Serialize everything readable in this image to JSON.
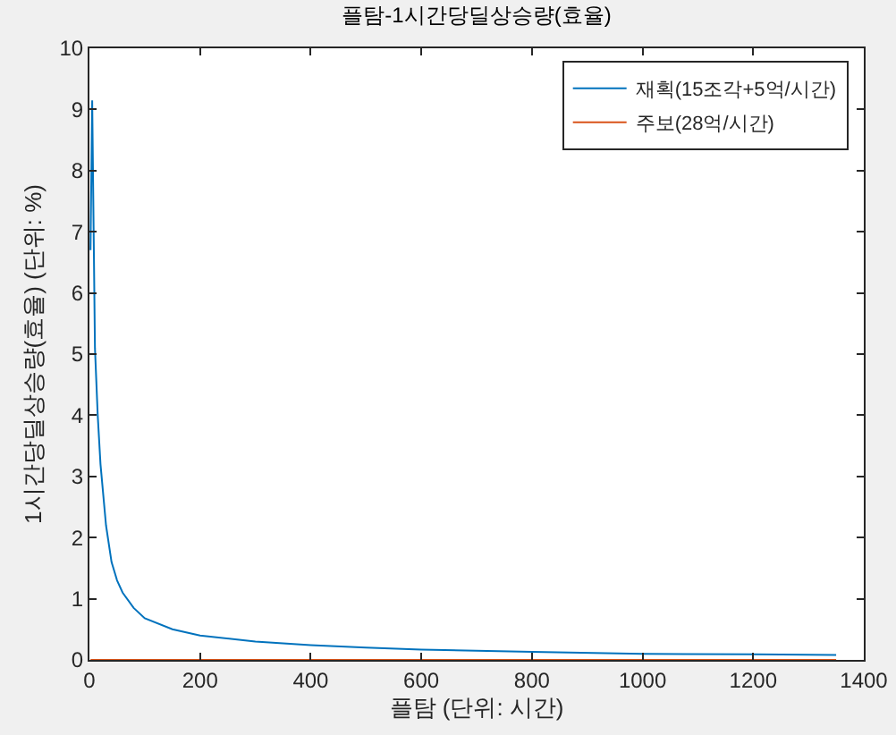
{
  "chart_data": {
    "type": "line",
    "title": "플탐-1시간당딜상승량(효율)",
    "xlabel": "플탐 (단위: 시간)",
    "ylabel": "1시간당딜상승량(효율) (단위: %)",
    "x": [
      2,
      5,
      10,
      15,
      20,
      30,
      40,
      50,
      60,
      80,
      100,
      150,
      200,
      300,
      400,
      500,
      600,
      800,
      1000,
      1200,
      1350
    ],
    "series": [
      {
        "name": "재획(15조각+5억/시간)",
        "color": "#0072bd",
        "values": [
          6.7,
          9.15,
          5.1,
          4.0,
          3.2,
          2.2,
          1.6,
          1.3,
          1.1,
          0.85,
          0.68,
          0.5,
          0.4,
          0.3,
          0.24,
          0.2,
          0.17,
          0.13,
          0.1,
          0.09,
          0.08
        ]
      },
      {
        "name": "주보(28억/시간)",
        "color": "#d95319",
        "values": [
          0,
          0,
          0,
          0,
          0,
          0,
          0,
          0,
          0,
          0,
          0,
          0,
          0,
          0,
          0,
          0,
          0,
          0,
          0,
          0,
          0
        ]
      }
    ],
    "xlim": [
      0,
      1400
    ],
    "xticks": [
      0,
      200,
      400,
      600,
      800,
      1000,
      1200,
      1400
    ],
    "ylim": [
      0,
      10
    ],
    "yticks": [
      0,
      1,
      2,
      3,
      4,
      5,
      6,
      7,
      8,
      9,
      10
    ],
    "grid": false,
    "legend": "top right",
    "marker": "none",
    "line_style": "solid"
  }
}
